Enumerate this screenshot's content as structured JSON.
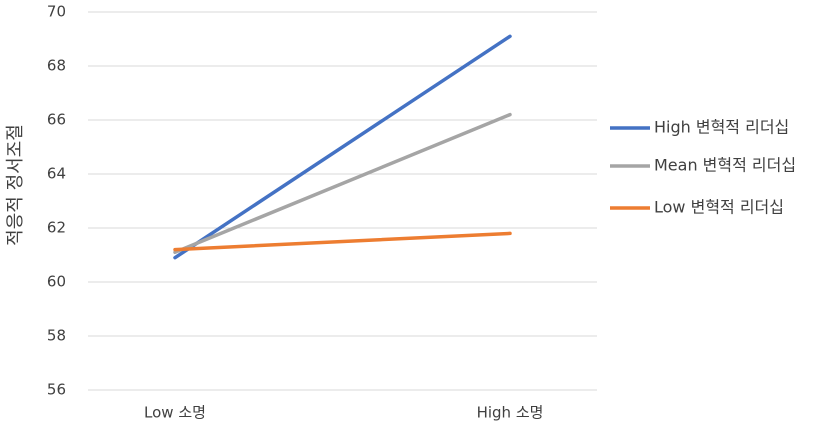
{
  "chart_data": {
    "type": "line",
    "y_label": "적응적 정서조절",
    "categories": [
      "Low 소명",
      "High 소명"
    ],
    "series": [
      {
        "name": "High 변혁적 리더십",
        "color": "#4472c4",
        "values": [
          60.9,
          69.1
        ]
      },
      {
        "name": "Mean 변혁적 리더십",
        "color": "#a5a5a5",
        "values": [
          61.1,
          66.2
        ]
      },
      {
        "name": "Low 변혁적 리더십",
        "color": "#ed7d31",
        "values": [
          61.2,
          61.8
        ]
      }
    ],
    "ylim": [
      56,
      70
    ],
    "yticks": [
      56,
      58,
      60,
      62,
      64,
      66,
      68,
      70
    ],
    "grid": true,
    "legend": "right"
  }
}
